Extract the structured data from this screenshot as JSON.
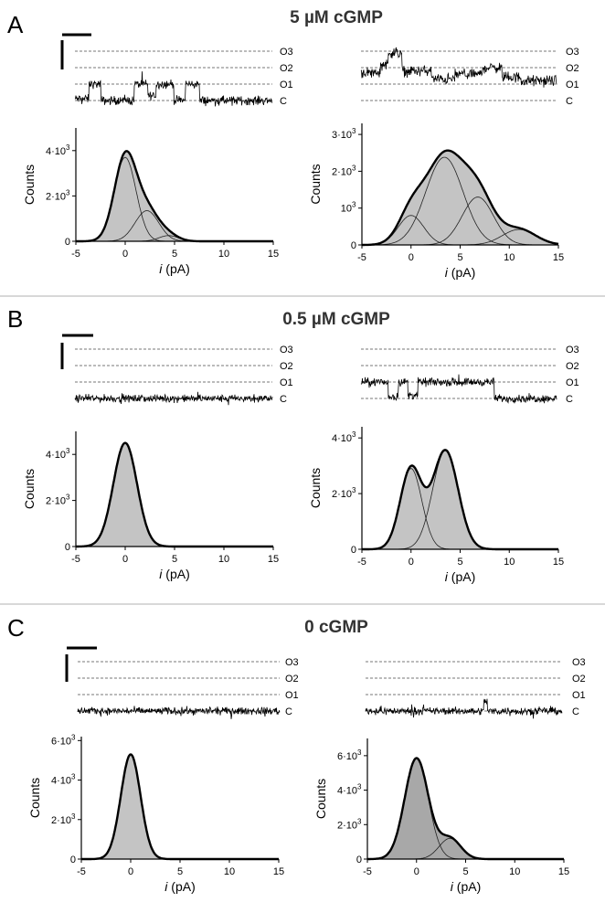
{
  "figure": {
    "separator_color": "#b0b0b0",
    "fill_color": "#c4c4c4",
    "fill_color_dark": "#a8a8a8",
    "level_labels": [
      "O3",
      "O2",
      "O1",
      "C"
    ]
  },
  "panels": [
    {
      "letter": "A",
      "title": "5 µM cGMP",
      "traces": [
        {
          "side": "left",
          "segments": [
            {
              "until": 0.07,
              "level": 0.1
            },
            {
              "until": 0.13,
              "level": 1
            },
            {
              "until": 0.3,
              "level": 0
            },
            {
              "until": 0.37,
              "level": 1
            },
            {
              "until": 0.41,
              "level": 0.3
            },
            {
              "until": 0.5,
              "level": 1
            },
            {
              "until": 0.56,
              "level": 0
            },
            {
              "until": 0.63,
              "level": 1
            },
            {
              "until": 1.0,
              "level": 0
            }
          ],
          "noise": 0.13
        },
        {
          "side": "right",
          "segments": [
            {
              "until": 0.1,
              "level": 1.7
            },
            {
              "until": 0.14,
              "level": 2.2
            },
            {
              "until": 0.21,
              "level": 2.9
            },
            {
              "until": 0.36,
              "level": 1.8
            },
            {
              "until": 0.48,
              "level": 1.3
            },
            {
              "until": 0.62,
              "level": 1.6
            },
            {
              "until": 0.72,
              "level": 2.0
            },
            {
              "until": 0.82,
              "level": 1.4
            },
            {
              "until": 1.0,
              "level": 1.2
            }
          ],
          "noise": 0.16
        }
      ]
    },
    {
      "letter": "B",
      "title": "0.5 µM cGMP",
      "traces": [
        {
          "side": "left",
          "segments": [
            {
              "until": 1.0,
              "level": 0
            }
          ],
          "noise": 0.11
        },
        {
          "side": "right",
          "segments": [
            {
              "until": 0.14,
              "level": 1
            },
            {
              "until": 0.19,
              "level": 0.1
            },
            {
              "until": 0.24,
              "level": 1
            },
            {
              "until": 0.29,
              "level": 0.2
            },
            {
              "until": 0.68,
              "level": 1
            },
            {
              "until": 1.0,
              "level": 0
            }
          ],
          "noise": 0.12
        }
      ]
    },
    {
      "letter": "C",
      "title": "0 cGMP",
      "traces": [
        {
          "side": "left",
          "segments": [
            {
              "until": 1.0,
              "level": 0
            }
          ],
          "noise": 0.11
        },
        {
          "side": "right",
          "segments": [
            {
              "until": 0.6,
              "level": 0
            },
            {
              "until": 0.62,
              "level": 0.6
            },
            {
              "until": 1.0,
              "level": 0
            }
          ],
          "noise": 0.11
        }
      ]
    }
  ],
  "chart_data": [
    {
      "panel": "A",
      "side": "left",
      "type": "area",
      "xlabel": "i (pA)",
      "ylabel": "Counts",
      "xlim": [
        -5,
        15
      ],
      "xticks": [
        "-5",
        "0",
        "5",
        "10",
        "15"
      ],
      "ylim": [
        0,
        5000
      ],
      "yticks": [
        {
          "value": 0,
          "base": "0",
          "exp": ""
        },
        {
          "value": 2000,
          "base": "2·10",
          "exp": "3"
        },
        {
          "value": 4000,
          "base": "4·10",
          "exp": "3"
        }
      ],
      "components": [
        {
          "amp": 3700,
          "mean": 0,
          "sd": 1.1
        },
        {
          "amp": 1350,
          "mean": 2.2,
          "sd": 1.2
        },
        {
          "amp": 250,
          "mean": 4.4,
          "sd": 1.0
        }
      ],
      "shading": "light"
    },
    {
      "panel": "A",
      "side": "right",
      "type": "area",
      "xlabel": "i (pA)",
      "ylabel": "Counts",
      "xlim": [
        -5,
        15
      ],
      "xticks": [
        "-5",
        "0",
        "5",
        "10",
        "15"
      ],
      "ylim": [
        0,
        3300
      ],
      "yticks": [
        {
          "value": 0,
          "base": "0",
          "exp": ""
        },
        {
          "value": 1000,
          "base": "10",
          "exp": "3"
        },
        {
          "value": 2000,
          "base": "2·10",
          "exp": "3"
        },
        {
          "value": 3000,
          "base": "3·10",
          "exp": "3"
        }
      ],
      "components": [
        {
          "amp": 800,
          "mean": 0,
          "sd": 1.3
        },
        {
          "amp": 2380,
          "mean": 3.4,
          "sd": 1.9
        },
        {
          "amp": 1300,
          "mean": 6.8,
          "sd": 1.6
        },
        {
          "amp": 420,
          "mean": 11,
          "sd": 1.7
        }
      ],
      "shading": "light"
    },
    {
      "panel": "B",
      "side": "left",
      "type": "area",
      "xlabel": "i (pA)",
      "ylabel": "Counts",
      "xlim": [
        -5,
        15
      ],
      "xticks": [
        "-5",
        "0",
        "5",
        "10",
        "15"
      ],
      "ylim": [
        0,
        5000
      ],
      "yticks": [
        {
          "value": 0,
          "base": "0",
          "exp": ""
        },
        {
          "value": 2000,
          "base": "2·10",
          "exp": "3"
        },
        {
          "value": 4000,
          "base": "4·10",
          "exp": "3"
        }
      ],
      "components": [
        {
          "amp": 4500,
          "mean": 0,
          "sd": 1.2
        }
      ],
      "shading": "light"
    },
    {
      "panel": "B",
      "side": "right",
      "type": "area",
      "xlabel": "i (pA)",
      "ylabel": "Counts",
      "xlim": [
        -5,
        15
      ],
      "xticks": [
        "-5",
        "0",
        "5",
        "10",
        "15"
      ],
      "ylim": [
        0,
        4400
      ],
      "yticks": [
        {
          "value": 0,
          "base": "0",
          "exp": ""
        },
        {
          "value": 2000,
          "base": "2·10",
          "exp": "3"
        },
        {
          "value": 4000,
          "base": "4·10",
          "exp": "3"
        }
      ],
      "components": [
        {
          "amp": 2900,
          "mean": 0,
          "sd": 1.1
        },
        {
          "amp": 3550,
          "mean": 3.5,
          "sd": 1.3
        }
      ],
      "shading": "light"
    },
    {
      "panel": "C",
      "side": "left",
      "type": "area",
      "xlabel": "i (pA)",
      "ylabel": "Counts",
      "xlim": [
        -5,
        15
      ],
      "xticks": [
        "-5",
        "0",
        "5",
        "10",
        "15"
      ],
      "ylim": [
        0,
        6200
      ],
      "yticks": [
        {
          "value": 0,
          "base": "0",
          "exp": ""
        },
        {
          "value": 2000,
          "base": "2·10",
          "exp": "3"
        },
        {
          "value": 4000,
          "base": "4·10",
          "exp": "3"
        },
        {
          "value": 6000,
          "base": "6·10",
          "exp": "3"
        }
      ],
      "components": [
        {
          "amp": 5300,
          "mean": 0,
          "sd": 1.0
        }
      ],
      "shading": "light"
    },
    {
      "panel": "C",
      "side": "right",
      "type": "area",
      "xlabel": "i (pA)",
      "ylabel": "Counts",
      "xlim": [
        -5,
        15
      ],
      "xticks": [
        "-5",
        "0",
        "5",
        "10",
        "15"
      ],
      "ylim": [
        0,
        7000
      ],
      "yticks": [
        {
          "value": 0,
          "base": "0",
          "exp": ""
        },
        {
          "value": 2000,
          "base": "2·10",
          "exp": "3"
        },
        {
          "value": 4000,
          "base": "4·10",
          "exp": "3"
        },
        {
          "value": 6000,
          "base": "6·10",
          "exp": "3"
        }
      ],
      "components": [
        {
          "amp": 5850,
          "mean": 0,
          "sd": 1.2
        },
        {
          "amp": 1200,
          "mean": 3.4,
          "sd": 1.1
        }
      ],
      "shading": "dark"
    }
  ]
}
